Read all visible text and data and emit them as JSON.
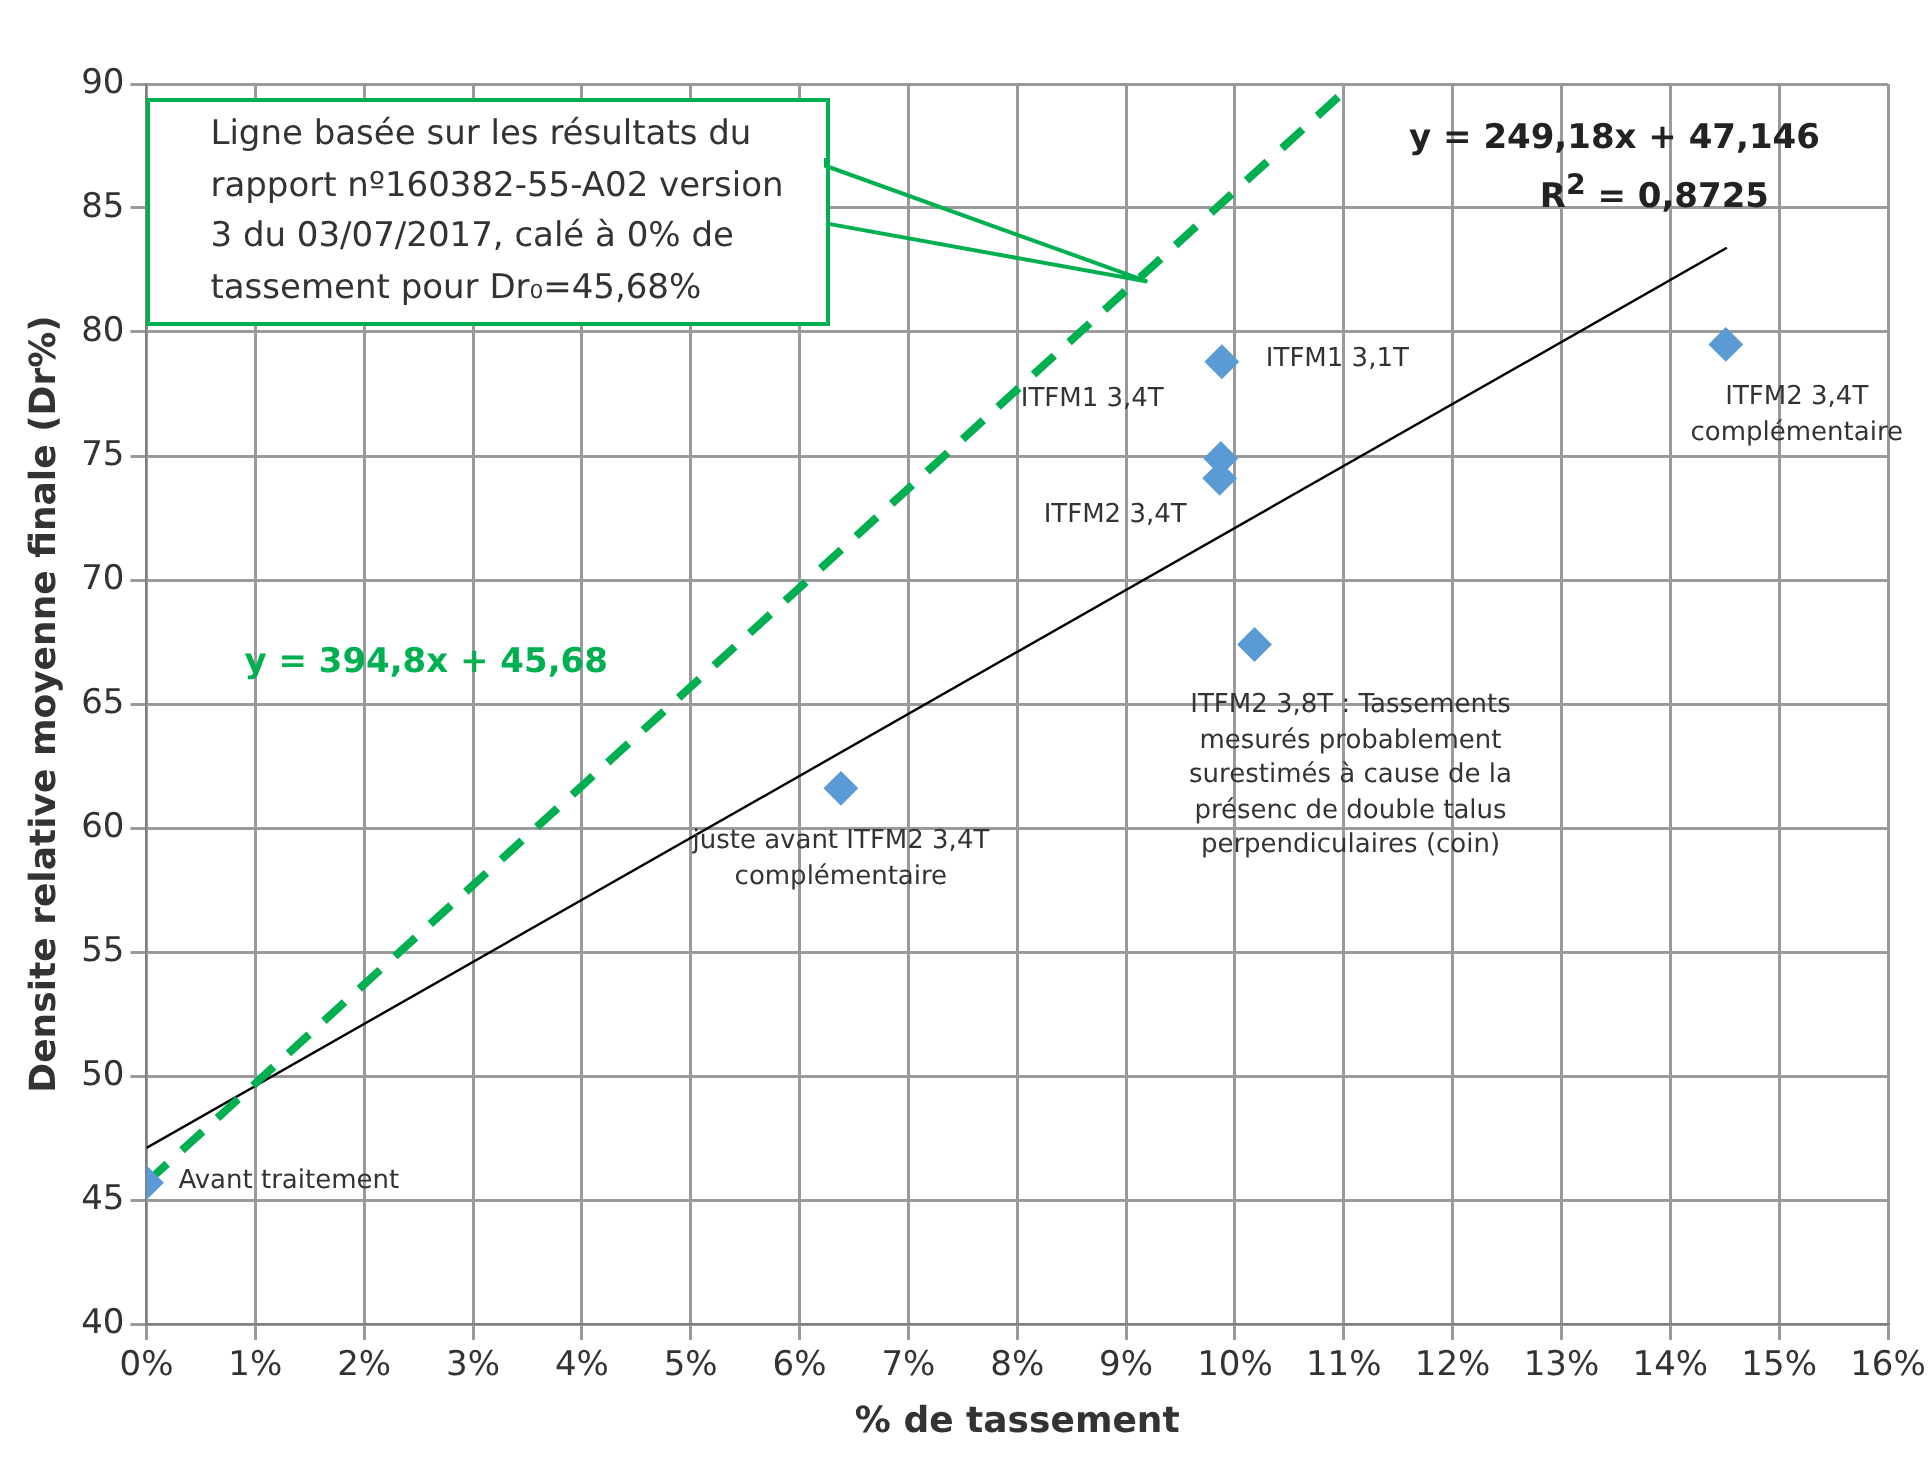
{
  "chart_data": {
    "type": "scatter",
    "xlabel": "% de tassement",
    "ylabel": "Densite relative moyenne finale (Dr%)",
    "xlim": [
      0,
      16
    ],
    "xticks": [
      {
        "value": 0,
        "label": "0%"
      },
      {
        "value": 1,
        "label": "1%"
      },
      {
        "value": 2,
        "label": "2%"
      },
      {
        "value": 3,
        "label": "3%"
      },
      {
        "value": 4,
        "label": "4%"
      },
      {
        "value": 5,
        "label": "5%"
      },
      {
        "value": 6,
        "label": "6%"
      },
      {
        "value": 7,
        "label": "7%"
      },
      {
        "value": 8,
        "label": "8%"
      },
      {
        "value": 9,
        "label": "9%"
      },
      {
        "value": 10,
        "label": "10%"
      },
      {
        "value": 11,
        "label": "11%"
      },
      {
        "value": 12,
        "label": "12%"
      },
      {
        "value": 13,
        "label": "13%"
      },
      {
        "value": 14,
        "label": "14%"
      },
      {
        "value": 15,
        "label": "15%"
      },
      {
        "value": 16,
        "label": "16%"
      }
    ],
    "ylim": [
      40,
      90
    ],
    "yticks": [
      40,
      45,
      50,
      55,
      60,
      65,
      70,
      75,
      80,
      85,
      90
    ],
    "grid": true,
    "legend": false,
    "series": [
      {
        "type": "line",
        "color": "#00b050",
        "line_style": "dashed",
        "marker": "none",
        "x": [
          0,
          11.08
        ],
        "values": [
          45.7,
          90
        ]
      },
      {
        "type": "line",
        "color": "#000000",
        "line_style": "solid",
        "marker": "none",
        "x": [
          0,
          14.52
        ],
        "values": [
          47.1,
          83.4
        ]
      },
      {
        "color": "#5b9bd5",
        "marker": "diamond",
        "x": [
          0,
          6.38,
          9.87,
          9.86,
          9.88,
          10.18,
          14.51
        ],
        "values": [
          45.7,
          61.6,
          74.9,
          74.1,
          78.8,
          67.4,
          79.5
        ]
      }
    ],
    "annotations": [
      "Ligne basée sur les résultats du rapport nº160382-55-A02 version 3 du 03/07/2017, calé à 0% de tassement pour Dr₀=45,68%",
      "y = 394,8x + 45,68",
      "y = 249,18x + 47,146",
      "R$^{2}$ = 0,8725",
      {
        "text": "Avant traitement",
        "x": 0,
        "y": 45.7
      },
      {
        "text": "juste avant ITFM2 3,4T complémentaire",
        "x": 6.38,
        "y": 61.6
      },
      {
        "text": "ITFM1 3,4T",
        "x": 9.87,
        "y": 74.9
      },
      {
        "text": "ITFM2 3,4T",
        "x": 9.86,
        "y": 74.1
      },
      {
        "text": "ITFM1 3,1T",
        "x": 9.88,
        "y": 78.8
      },
      {
        "text": "ITFM2 3,8T : Tassements mesurés probablement surestimés à cause de la présenc de double talus perpendiculaires (coin)",
        "x": 10.18,
        "y": 67.4
      },
      {
        "text": "ITFM2 3,4T complémentaire",
        "x": 14.51,
        "y": 79.5
      }
    ]
  }
}
